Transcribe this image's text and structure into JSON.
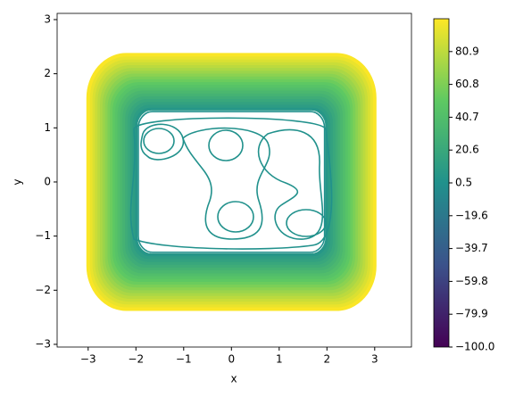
{
  "chart_data": {
    "type": "contour",
    "colormap": "viridis",
    "xlabel": "x",
    "ylabel": "y",
    "xlim": [
      -3.65,
      3.77
    ],
    "ylim": [
      -3.05,
      3.115
    ],
    "xticks": [
      {
        "value": -3,
        "label": "−3"
      },
      {
        "value": -2,
        "label": "−2"
      },
      {
        "value": -1,
        "label": "−1"
      },
      0,
      1,
      2,
      3
    ],
    "yticks": [
      {
        "value": -3,
        "label": "−3"
      },
      {
        "value": -2,
        "label": "−2"
      },
      {
        "value": -1,
        "label": "−1"
      },
      0,
      1,
      2,
      3
    ],
    "levels": [
      0,
      5,
      10,
      15,
      20,
      25,
      30,
      35,
      40,
      45,
      50,
      55,
      60,
      65,
      70,
      75,
      80,
      85,
      90,
      95,
      100
    ],
    "clim": [
      -100,
      101
    ],
    "cticks": [
      {
        "value": -100,
        "label": "−100.0"
      },
      {
        "value": -79.9,
        "label": "−79.9"
      },
      {
        "value": -59.8,
        "label": "−59.8"
      },
      {
        "value": -39.7,
        "label": "−39.7"
      },
      {
        "value": -19.6,
        "label": "−19.6"
      },
      0.5,
      20.6,
      40.7,
      60.8,
      80.9
    ]
  }
}
